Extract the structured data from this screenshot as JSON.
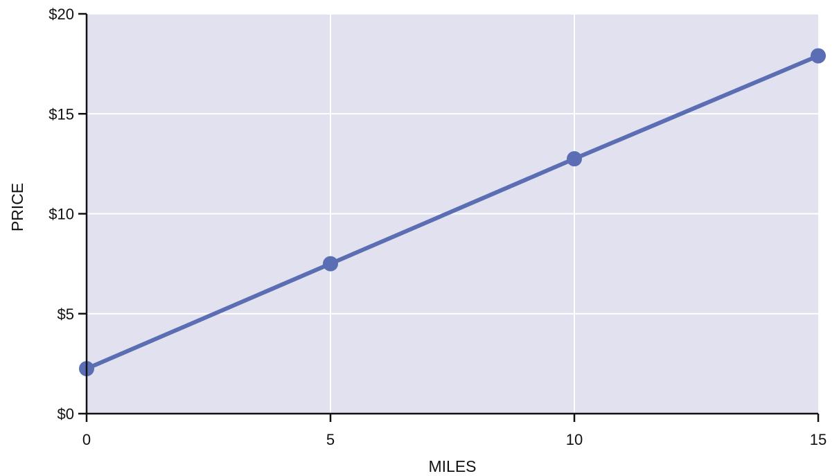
{
  "chart_data": {
    "type": "line",
    "title": "",
    "xlabel": "MILES",
    "ylabel": "PRICE",
    "xlim": [
      0,
      15
    ],
    "ylim": [
      0,
      20
    ],
    "x_ticks": [
      0,
      5,
      10,
      15
    ],
    "x_tick_labels": [
      "0",
      "5",
      "10",
      "15"
    ],
    "y_ticks": [
      0,
      5,
      10,
      15,
      20
    ],
    "y_tick_labels": [
      "$0",
      "$5",
      "$10",
      "$15",
      "$20"
    ],
    "grid": true,
    "legend": "none",
    "series": [
      {
        "x": [
          0,
          5,
          10,
          15
        ],
        "y": [
          2.25,
          7.5,
          12.75,
          17.9
        ],
        "color": "#5b6eb3",
        "markers": true
      }
    ],
    "colors": {
      "plot_background": "#e1e1ef",
      "gridline": "#ffffff",
      "axis": "#111111"
    }
  }
}
